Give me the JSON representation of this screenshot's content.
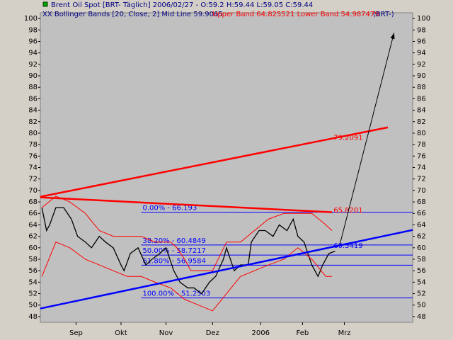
{
  "chart_data": {
    "type": "line",
    "header": {
      "instrument": "Brent Oil Spot [BRT-  Täglich] 2006/02/27 - O:59.2 H:59.44 L:59.05 C:59.44",
      "indicator": "XX Bollinger Bands [20, Close, 2] Mid Line 59.9065",
      "bands": "Upper Band 64.825521 Lower Band 54.987479",
      "symbol": "(BRT-)"
    },
    "xlim": [
      0,
      240
    ],
    "ylim": [
      47,
      101
    ],
    "xticks": [
      {
        "value": 23,
        "label": "Sep"
      },
      {
        "value": 52,
        "label": "Okt"
      },
      {
        "value": 81,
        "label": "Nov"
      },
      {
        "value": 111,
        "label": "Dez"
      },
      {
        "value": 142,
        "label": "2006"
      },
      {
        "value": 169,
        "label": "Feb"
      },
      {
        "value": 196,
        "label": "Mrz"
      }
    ],
    "yticks": [
      48,
      50,
      52,
      54,
      56,
      58,
      60,
      62,
      64,
      66,
      68,
      70,
      72,
      74,
      76,
      78,
      80,
      82,
      84,
      86,
      88,
      90,
      92,
      94,
      96,
      98,
      100
    ],
    "series": [
      {
        "name": "Close",
        "color": "#000000",
        "x": [
          1,
          4,
          6,
          10,
          15,
          20,
          24,
          29,
          33,
          38,
          42,
          47,
          52,
          54,
          58,
          63,
          68,
          72,
          77,
          81,
          86,
          90,
          95,
          99,
          104,
          109,
          113,
          118,
          120,
          125,
          129,
          134,
          136,
          141,
          145,
          150,
          154,
          159,
          163,
          166,
          170,
          175,
          179,
          182,
          186,
          190
        ],
        "values": [
          67,
          63,
          64,
          67,
          67,
          65,
          62,
          61,
          60,
          62,
          61,
          60,
          57,
          56,
          59,
          60,
          57,
          58,
          59,
          60,
          56,
          54,
          53,
          53,
          52,
          54,
          55,
          58,
          60,
          56,
          57,
          57,
          61,
          63,
          63,
          62,
          64,
          63,
          65,
          62,
          61,
          57,
          55,
          57,
          59,
          59.4
        ]
      },
      {
        "name": "Upper Band",
        "color": "#ff0000",
        "x": [
          1,
          10,
          19,
          29,
          38,
          47,
          56,
          65,
          74,
          84,
          88,
          93,
          97,
          102,
          111,
          120,
          129,
          138,
          147,
          157,
          166,
          175,
          184,
          188
        ],
        "values": [
          67,
          69,
          68,
          66,
          63,
          62,
          62,
          62,
          61,
          61,
          60,
          58,
          56,
          56,
          56,
          61,
          61,
          63,
          65,
          66,
          66,
          66,
          64,
          63
        ]
      },
      {
        "name": "Lower Band",
        "color": "#ff0000",
        "x": [
          1,
          10,
          19,
          29,
          38,
          47,
          56,
          65,
          74,
          84,
          93,
          102,
          111,
          120,
          129,
          138,
          147,
          157,
          166,
          175,
          184,
          188
        ],
        "values": [
          55,
          61,
          60,
          58,
          57,
          56,
          55,
          55,
          54,
          53,
          51,
          50,
          49,
          52,
          55,
          56,
          57,
          58,
          60,
          58,
          55,
          55
        ]
      }
    ],
    "trendlines": [
      {
        "color": "#ff0000",
        "x": [
          0,
          224
        ],
        "values": [
          68.9,
          81
        ],
        "label": "79.2091",
        "label_x": 189,
        "label_y": 79.2091
      },
      {
        "color": "#0000ff",
        "x": [
          0,
          240
        ],
        "values": [
          49.4,
          63.1
        ]
      },
      {
        "color": "#ff0000",
        "x": [
          0,
          188
        ],
        "values": [
          68.8,
          66.2
        ],
        "label": "65.8201",
        "label_x": 189,
        "label_y": 66.5
      },
      {
        "color": "#000000",
        "x": [
          193,
          228
        ],
        "values": [
          60.5,
          97.5
        ]
      }
    ],
    "blue_label": {
      "text": "60.3419",
      "x": 189,
      "y": 60.3419
    },
    "fibonacci": {
      "x": [
        65,
        240
      ],
      "levels": [
        {
          "value": 66.193,
          "label": "0.00% - 66.193"
        },
        {
          "value": 60.4849,
          "label": "38.20% - 60.4849"
        },
        {
          "value": 58.7217,
          "label": "50.00% - 58.7217"
        },
        {
          "value": 56.9584,
          "label": "61.80% - 56.9584"
        },
        {
          "value": 51.2503,
          "label": "100.00% - 51.2503"
        }
      ]
    }
  }
}
